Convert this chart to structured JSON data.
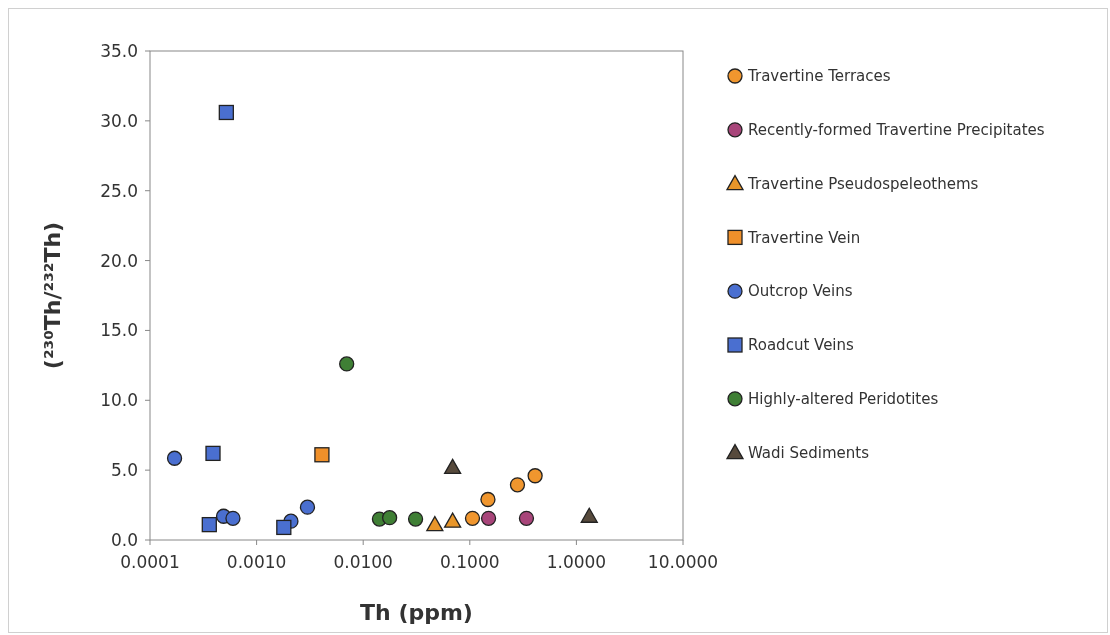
{
  "chart_data": {
    "type": "scatter",
    "xlabel": "Th (ppm)",
    "ylabel": "(²³⁰Th/²³²Th)",
    "log": "x",
    "grid": false,
    "legend": "right",
    "xlim": [
      0.0001,
      10
    ],
    "xticks": [
      {
        "value": 0.0001,
        "label": "0.0001"
      },
      {
        "value": 0.001,
        "label": "0.0010"
      },
      {
        "value": 0.01,
        "label": "0.0100"
      },
      {
        "value": 0.1,
        "label": "0.1000"
      },
      {
        "value": 1,
        "label": "1.0000"
      },
      {
        "value": 10,
        "label": "10.0000"
      }
    ],
    "ylim": [
      0,
      35
    ],
    "yticks": [
      {
        "value": 0,
        "label": "0.0"
      },
      {
        "value": 5,
        "label": "5.0"
      },
      {
        "value": 10,
        "label": "10.0"
      },
      {
        "value": 15,
        "label": "15.0"
      },
      {
        "value": 20,
        "label": "20.0"
      },
      {
        "value": 25,
        "label": "25.0"
      },
      {
        "value": 30,
        "label": "30.0"
      },
      {
        "value": 35,
        "label": "35.0"
      }
    ],
    "series": [
      {
        "name": "Travertine Terraces",
        "color": "#f0962e",
        "marker": "circle",
        "x": [
          0.106,
          0.148,
          0.28,
          0.41
        ],
        "values": [
          1.55,
          2.9,
          3.95,
          4.6
        ]
      },
      {
        "name": "Recently-formed Travertine Precipitates",
        "color": "#a8457a",
        "marker": "circle",
        "x": [
          0.15,
          0.34
        ],
        "values": [
          1.55,
          1.55
        ]
      },
      {
        "name": "Travertine Pseudospeleothems",
        "color": "#e8962a",
        "marker": "triangle",
        "x": [
          0.047,
          0.069
        ],
        "values": [
          1.1,
          1.35
        ]
      },
      {
        "name": "Travertine Vein",
        "color": "#f0902a",
        "marker": "square",
        "x": [
          0.0041
        ],
        "values": [
          6.1
        ]
      },
      {
        "name": "Outcrop Veins",
        "color": "#4a6fd0",
        "marker": "circle",
        "x": [
          0.00017,
          0.00049,
          0.0006,
          0.0021,
          0.003
        ],
        "values": [
          5.85,
          1.7,
          1.55,
          1.35,
          2.35
        ]
      },
      {
        "name": "Roadcut Veins",
        "color": "#4a6fd0",
        "marker": "square",
        "x": [
          0.00052,
          0.00039,
          0.00036,
          0.0018
        ],
        "values": [
          30.6,
          6.2,
          1.1,
          0.9
        ]
      },
      {
        "name": "Highly-altered Peridotites",
        "color": "#3f7f35",
        "marker": "circle",
        "x": [
          0.007,
          0.0142,
          0.0177,
          0.031
        ],
        "values": [
          12.6,
          1.5,
          1.6,
          1.5
        ]
      },
      {
        "name": "Wadi Sediments",
        "color": "#574a3c",
        "marker": "triangle",
        "x": [
          0.069,
          1.32
        ],
        "values": [
          5.2,
          1.7
        ]
      }
    ]
  }
}
